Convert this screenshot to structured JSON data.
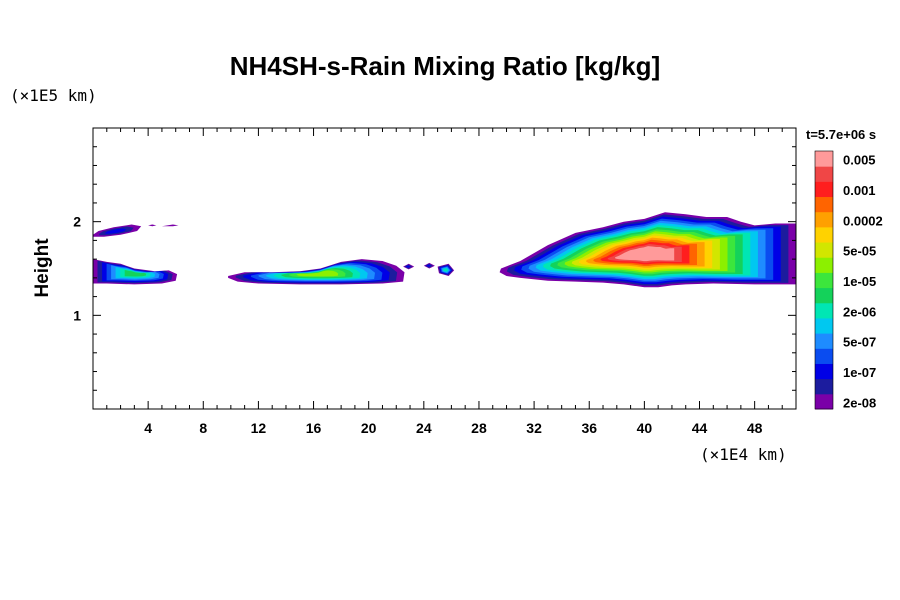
{
  "chart_data": {
    "type": "heatmap",
    "title": "NH4SH-s-Rain Mixing Ratio [kg/kg]",
    "ylabel": "Height",
    "xlabel": "",
    "x_unit": "(×1E4 km)",
    "y_unit": "(×1E5 km)",
    "time_label": "t=5.7e+06 s",
    "xlim": [
      0,
      51
    ],
    "ylim": [
      0,
      3
    ],
    "x_ticks": [
      4,
      8,
      12,
      16,
      20,
      24,
      28,
      32,
      36,
      40,
      44,
      48
    ],
    "y_ticks": [
      1,
      2
    ],
    "colorbar": {
      "colors": [
        "#7a00a8",
        "#1c1c9e",
        "#0000e6",
        "#0a4cf0",
        "#1e8cff",
        "#00c8f0",
        "#00e6b4",
        "#14d25a",
        "#3ce63c",
        "#8cf000",
        "#d2e600",
        "#ffd200",
        "#ffa000",
        "#ff6400",
        "#ff1e1e",
        "#f04646",
        "#ff9a9a"
      ],
      "labels": [
        "2e-08",
        "1e-07",
        "5e-07",
        "2e-06",
        "1e-05",
        "5e-05",
        "0.0002",
        "0.001",
        "0.005"
      ]
    },
    "levels": [
      "2e-08",
      "5e-08",
      "1e-07",
      "2e-07",
      "5e-07",
      "1e-06",
      "2e-06",
      "5e-06",
      "1e-05",
      "2e-05",
      "5e-05",
      "0.0001",
      "0.0002",
      "0.0005",
      "0.001",
      "0.002",
      "0.005"
    ],
    "fields": [
      {
        "x": [
          0.0,
          0.4,
          1.5,
          2.8,
          3.5,
          3.2,
          2.0,
          0.8,
          0.0
        ],
        "y": [
          1.86,
          1.9,
          1.94,
          1.97,
          1.95,
          1.9,
          1.86,
          1.84,
          1.84
        ],
        "max_level": 2
      },
      {
        "x": [
          4.0,
          4.3,
          4.6,
          4.3,
          4.0
        ],
        "y": [
          1.96,
          1.97,
          1.96,
          1.95,
          1.96
        ],
        "max_level": 0
      },
      {
        "x": [
          5.0,
          5.8,
          6.2,
          5.8,
          5.0
        ],
        "y": [
          1.95,
          1.97,
          1.96,
          1.95,
          1.95
        ],
        "max_level": 0
      },
      {
        "x": [
          0.0,
          1.0,
          2.0,
          3.0,
          4.5,
          5.5,
          6.1,
          6.0,
          5.0,
          3.0,
          1.0,
          0.0
        ],
        "y": [
          1.6,
          1.57,
          1.55,
          1.5,
          1.47,
          1.48,
          1.44,
          1.37,
          1.34,
          1.33,
          1.34,
          1.34
        ],
        "max_level": 7
      },
      {
        "x": [
          9.8,
          11.0,
          13.0,
          15.0,
          16.5,
          18.0,
          19.5,
          21.0,
          22.0,
          22.6,
          22.5,
          21.0,
          18.0,
          15.0,
          12.0,
          10.5,
          9.8
        ],
        "y": [
          1.42,
          1.46,
          1.46,
          1.47,
          1.5,
          1.57,
          1.6,
          1.58,
          1.53,
          1.46,
          1.36,
          1.34,
          1.33,
          1.33,
          1.34,
          1.36,
          1.4
        ],
        "max_level": 9
      },
      {
        "x": [
          22.5,
          22.9,
          23.3,
          22.9,
          22.5
        ],
        "y": [
          1.52,
          1.55,
          1.52,
          1.49,
          1.52
        ],
        "max_level": 2
      },
      {
        "x": [
          24.0,
          24.4,
          24.8,
          24.4,
          24.0
        ],
        "y": [
          1.53,
          1.56,
          1.53,
          1.5,
          1.53
        ],
        "max_level": 2
      },
      {
        "x": [
          25.0,
          25.8,
          26.2,
          25.8,
          25.1
        ],
        "y": [
          1.52,
          1.55,
          1.48,
          1.42,
          1.45
        ],
        "max_level": 6
      },
      {
        "x": [
          29.6,
          31.0,
          33.0,
          35.0,
          37.0,
          38.5,
          40.0,
          41.5,
          43.0,
          44.5,
          46.0,
          47.0,
          48.0,
          49.5,
          51.0,
          51.0,
          48.0,
          45.0,
          43.0,
          42.0,
          41.0,
          40.0,
          38.5,
          37.0,
          35.0,
          33.0,
          31.0,
          30.0,
          29.5
        ],
        "y": [
          1.5,
          1.58,
          1.75,
          1.88,
          1.94,
          2.0,
          2.03,
          2.1,
          2.08,
          2.05,
          2.05,
          2.0,
          1.96,
          1.98,
          1.98,
          1.33,
          1.33,
          1.34,
          1.33,
          1.32,
          1.3,
          1.3,
          1.33,
          1.35,
          1.36,
          1.37,
          1.4,
          1.42,
          1.46
        ],
        "max_level": 16
      }
    ]
  }
}
